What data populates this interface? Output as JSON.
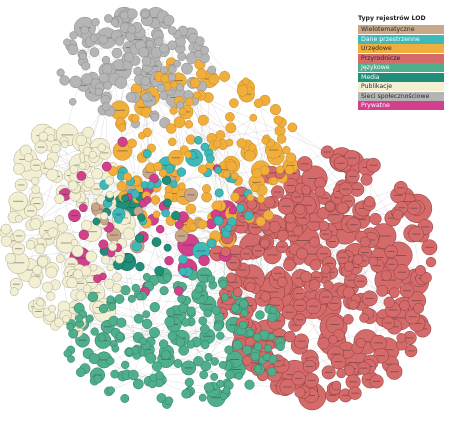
{
  "legend": {
    "title": "Typy rejestrów LOD",
    "items": [
      {
        "label": "Wielotematyczne",
        "color": "#c8a78b",
        "text_color": "#2b2b2b"
      },
      {
        "label": "Dane przestrzenne",
        "color": "#3fb8b8",
        "text_color": "#ffffff"
      },
      {
        "label": "Urzędowe",
        "color": "#f0ae3c",
        "text_color": "#2b2b2b"
      },
      {
        "label": "Przyrodnicze",
        "color": "#d46a6a",
        "text_color": "#2b2b2b"
      },
      {
        "label": "Językowe",
        "color": "#4fae8c",
        "text_color": "#ffffff"
      },
      {
        "label": "Media",
        "color": "#1f8f7a",
        "text_color": "#ffffff"
      },
      {
        "label": "Publikacje",
        "color": "#f3efd3",
        "text_color": "#2b2b2b"
      },
      {
        "label": "Sieci społecznościowe",
        "color": "#b5b5b5",
        "text_color": "#2b2b2b"
      },
      {
        "label": "Prywatne",
        "color": "#d2408c",
        "text_color": "#ffffff"
      }
    ]
  },
  "clusters": [
    {
      "category": "Sieci społecznościowe",
      "color": "#b5b5b5",
      "stroke": "#8a8a8a",
      "count": 150
    },
    {
      "category": "Urzędowe",
      "color": "#f0ae3c",
      "stroke": "#c48822",
      "count": 150
    },
    {
      "category": "Publikacje",
      "color": "#f3efd3",
      "stroke": "#a8a68e",
      "count": 170
    },
    {
      "category": "Językowe",
      "color": "#4fae8c",
      "stroke": "#2f7e62",
      "count": 200
    },
    {
      "category": "Przyrodnicze",
      "color": "#d46a6a",
      "stroke": "#8c3d3d",
      "count": 330
    },
    {
      "category": "Prywatne",
      "color": "#d2408c",
      "stroke": "#952a60",
      "count": 40
    },
    {
      "category": "Dane przestrzenne",
      "color": "#3fb8b8",
      "stroke": "#1f8a8a",
      "count": 45
    },
    {
      "category": "Media",
      "color": "#1f8f7a",
      "stroke": "#15604f",
      "count": 20
    },
    {
      "category": "Wielotematyczne",
      "color": "#c8a78b",
      "stroke": "#8f7058",
      "count": 12
    }
  ]
}
